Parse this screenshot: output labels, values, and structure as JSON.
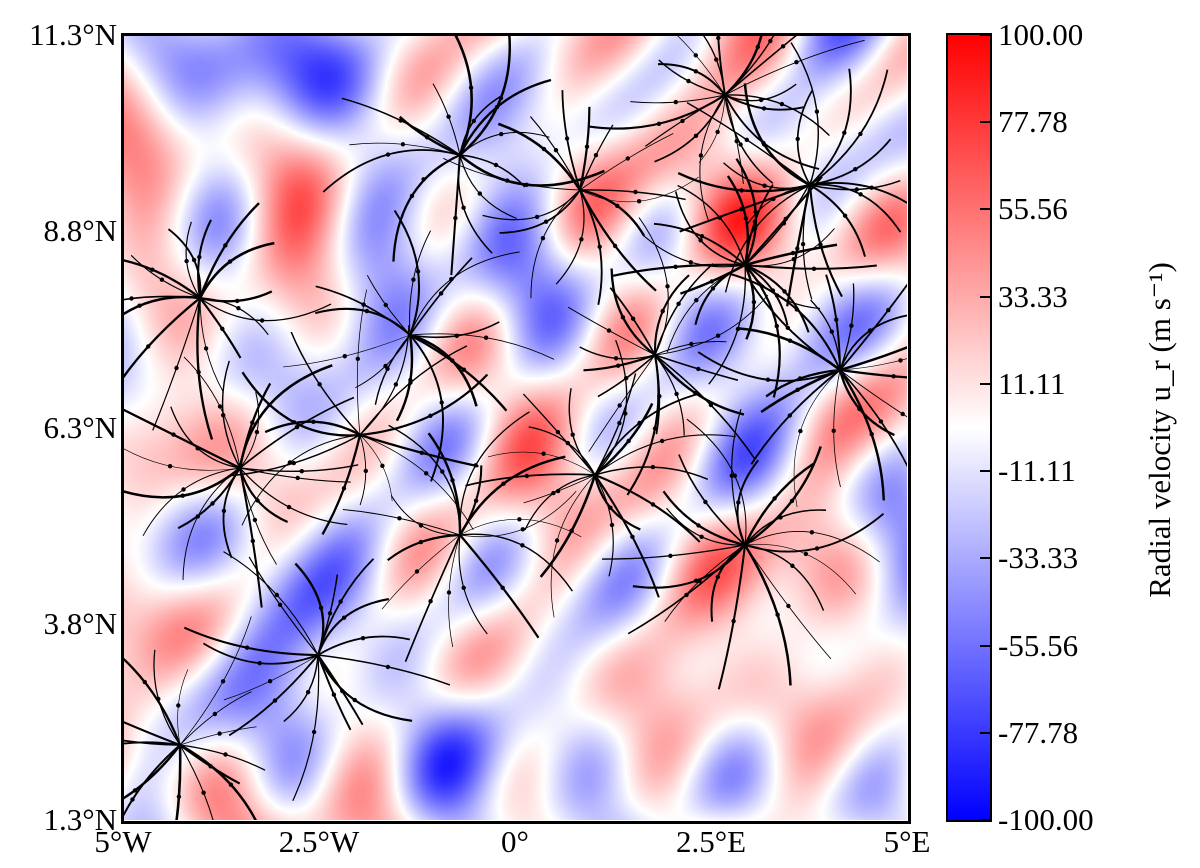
{
  "chart_data": {
    "type": "heatmap",
    "overlay": "streamlines",
    "x_ticks": [
      "5°W",
      "2.5°W",
      "0°",
      "2.5°E",
      "5°E"
    ],
    "x_tick_values": [
      -5,
      -2.5,
      0,
      2.5,
      5
    ],
    "y_ticks": [
      "11.3°N",
      "8.8°N",
      "6.3°N",
      "3.8°N",
      "1.3°N"
    ],
    "y_tick_values": [
      11.3,
      8.8,
      6.3,
      3.8,
      1.3
    ],
    "xlim": [
      -5,
      5
    ],
    "ylim": [
      1.3,
      11.3
    ],
    "colorbar": {
      "label": "Radial velocity u_r (m s⁻¹)",
      "colormap": "bwr",
      "range": [
        -100,
        100
      ],
      "ticks": [
        "100.00",
        "77.78",
        "55.56",
        "33.33",
        "11.11",
        "-11.11",
        "-33.33",
        "-55.56",
        "-77.78",
        "-100.00"
      ],
      "colors": {
        "max": "#ff0000",
        "mid": "#ffffff",
        "min": "#0000ff"
      }
    }
  }
}
